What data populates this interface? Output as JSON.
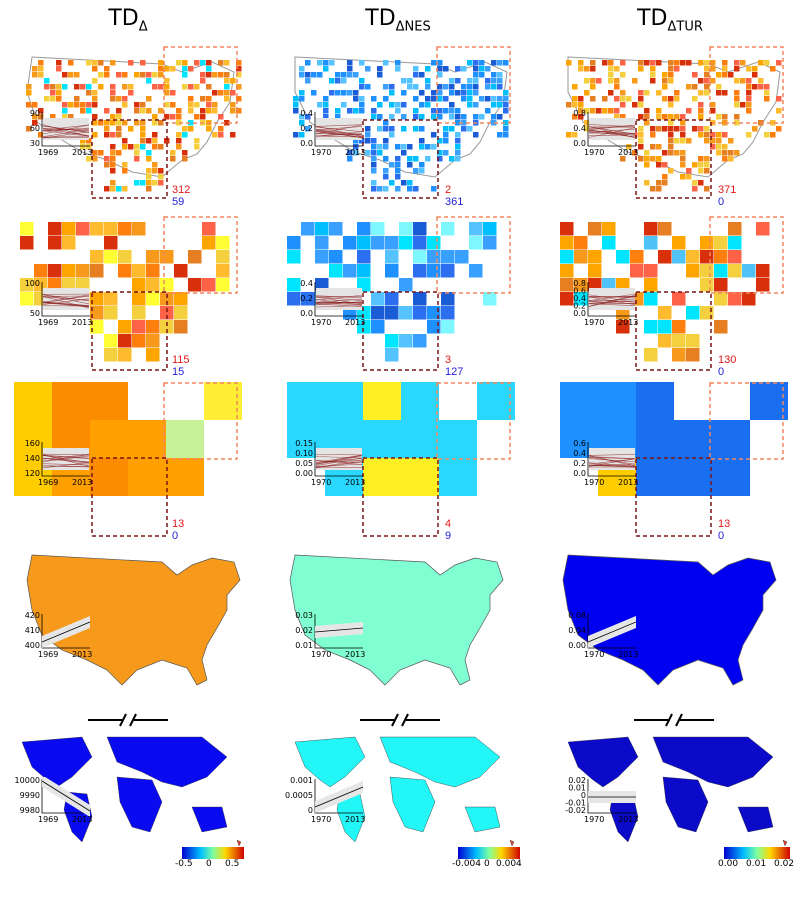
{
  "columns": [
    {
      "title": "TD",
      "sub": "Δ"
    },
    {
      "title": "TD",
      "sub": "ΔNES"
    },
    {
      "title": "TD",
      "sub": "ΔTUR"
    }
  ],
  "map_fill_colors": {
    "td": "#f79a1b",
    "nes": "#7fffd2",
    "tur": "#0000f0",
    "world_td": "#0a0af0",
    "world_nes": "#22f6f6",
    "world_tur": "#0a0ac8"
  },
  "counts": [
    {
      "row": 1,
      "col": 1,
      "red": "312",
      "blue": "59"
    },
    {
      "row": 1,
      "col": 2,
      "red": "2",
      "blue": "361"
    },
    {
      "row": 1,
      "col": 3,
      "red": "371",
      "blue": "0"
    },
    {
      "row": 2,
      "col": 1,
      "red": "115",
      "blue": "15"
    },
    {
      "row": 2,
      "col": 2,
      "red": "3",
      "blue": "127"
    },
    {
      "row": 2,
      "col": 3,
      "red": "130",
      "blue": "0"
    },
    {
      "row": 3,
      "col": 1,
      "red": "13",
      "blue": "0"
    },
    {
      "row": 3,
      "col": 2,
      "red": "4",
      "blue": "9"
    },
    {
      "row": 3,
      "col": 3,
      "red": "13",
      "blue": "0"
    }
  ],
  "insets": [
    {
      "row": 1,
      "col": 1,
      "yticks": [
        "90",
        "60",
        "30"
      ],
      "x_start": "1969",
      "x_end": "2013",
      "kind": "bundle"
    },
    {
      "row": 1,
      "col": 2,
      "yticks": [
        "0.4",
        "0.2",
        "0.0"
      ],
      "x_start": "1970",
      "x_end": "2013",
      "kind": "bundle"
    },
    {
      "row": 1,
      "col": 3,
      "yticks": [
        "0.8",
        "0.4",
        "0.0"
      ],
      "x_start": "1970",
      "x_end": "2013",
      "kind": "bundle"
    },
    {
      "row": 2,
      "col": 1,
      "yticks": [
        "100",
        "50"
      ],
      "x_start": "1969",
      "x_end": "2013",
      "kind": "bundle"
    },
    {
      "row": 2,
      "col": 2,
      "yticks": [
        "0.4",
        "0.2",
        "0.0"
      ],
      "x_start": "1970",
      "x_end": "2013",
      "kind": "bundle"
    },
    {
      "row": 2,
      "col": 3,
      "yticks": [
        "0.8",
        "0.6",
        "0.4",
        "0.2",
        "0.0"
      ],
      "x_start": "1970",
      "x_end": "2013",
      "kind": "bundle"
    },
    {
      "row": 3,
      "col": 1,
      "yticks": [
        "160",
        "140",
        "120"
      ],
      "x_start": "1969",
      "x_end": "2013",
      "kind": "bundle"
    },
    {
      "row": 3,
      "col": 2,
      "yticks": [
        "0.15",
        "0.10",
        "0.05",
        "0.00"
      ],
      "x_start": "1970",
      "x_end": "2013",
      "kind": "bundle"
    },
    {
      "row": 3,
      "col": 3,
      "yticks": [
        "0.6",
        "0.4",
        "0.2",
        "0.0"
      ],
      "x_start": "1970",
      "x_end": "2013",
      "kind": "bundle"
    },
    {
      "row": 4,
      "col": 1,
      "yticks": [
        "420",
        "410",
        "400"
      ],
      "x_start": "1969",
      "x_end": "2013",
      "kind": "line",
      "trend": "up"
    },
    {
      "row": 4,
      "col": 2,
      "yticks": [
        "0.03",
        "0.02",
        "0.01"
      ],
      "x_start": "1970",
      "x_end": "2013",
      "kind": "line",
      "trend": "flat-up"
    },
    {
      "row": 4,
      "col": 3,
      "yticks": [
        "0.08",
        "0.04",
        "0.00"
      ],
      "x_start": "1970",
      "x_end": "2013",
      "kind": "line",
      "trend": "up"
    },
    {
      "row": 5,
      "col": 1,
      "yticks": [
        "10000",
        "9990",
        "9980"
      ],
      "x_start": "1969",
      "x_end": "2013",
      "kind": "line",
      "trend": "down"
    },
    {
      "row": 5,
      "col": 2,
      "yticks": [
        "0.001",
        "0.0005",
        "0"
      ],
      "x_start": "1970",
      "x_end": "2013",
      "kind": "line",
      "trend": "up"
    },
    {
      "row": 5,
      "col": 3,
      "yticks": [
        "0.02",
        "0.01",
        "0",
        "-0.01",
        "-0.02"
      ],
      "x_start": "1970",
      "x_end": "2013",
      "kind": "line",
      "trend": "flat"
    }
  ],
  "colorbars": [
    {
      "ticks": [
        "-0.5",
        "0",
        "0.5"
      ]
    },
    {
      "ticks": [
        "-0.004",
        "0",
        "0.004"
      ]
    },
    {
      "ticks": [
        "0.00",
        "0.01",
        "0.02"
      ]
    }
  ]
}
